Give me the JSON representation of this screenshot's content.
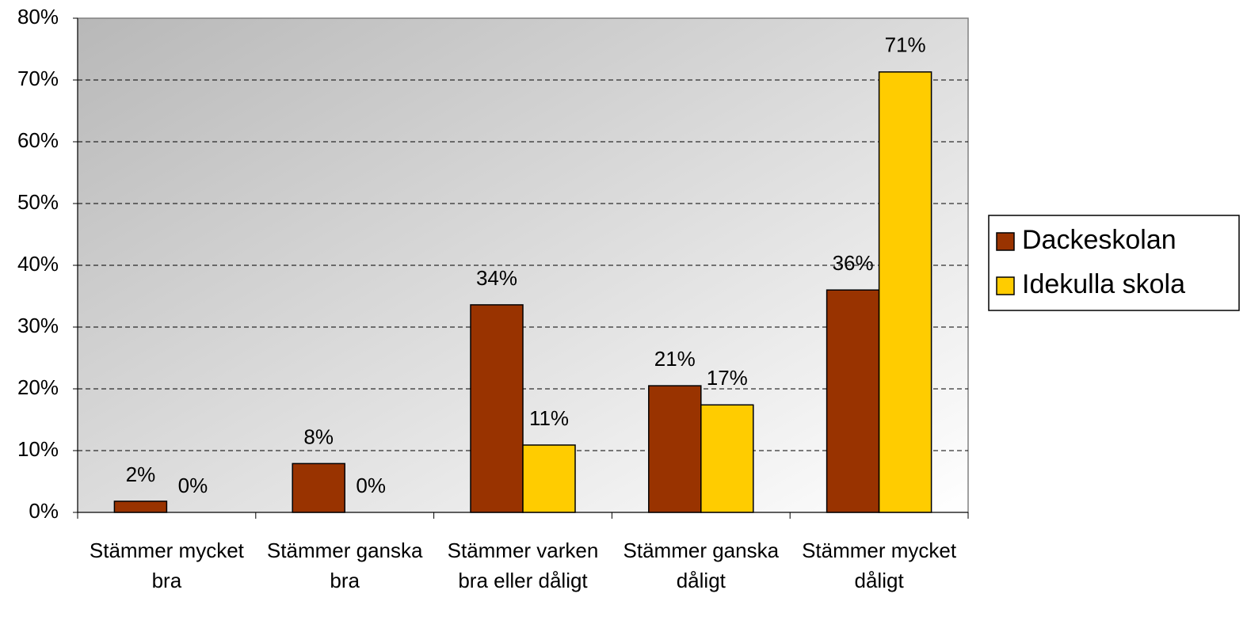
{
  "chart_data": {
    "type": "bar",
    "categories": [
      "Stämmer mycket bra",
      "Stämmer ganska bra",
      "Stämmer varken bra eller dåligt",
      "Stämmer ganska dåligt",
      "Stämmer mycket dåligt"
    ],
    "series": [
      {
        "name": "Dackeskolan",
        "color": "#993300",
        "values": [
          1.8,
          7.9,
          33.6,
          20.5,
          36.0
        ],
        "value_labels": [
          "2%",
          "8%",
          "34%",
          "21%",
          "36%"
        ]
      },
      {
        "name": "Idekulla skola",
        "color": "#ffcc00",
        "values": [
          0,
          0,
          10.9,
          17.4,
          71.3
        ],
        "value_labels": [
          "0%",
          "0%",
          "11%",
          "17%",
          "71%"
        ]
      }
    ],
    "ylim": [
      0,
      80
    ],
    "yticks": [
      {
        "value": 0,
        "label": "0%"
      },
      {
        "value": 10,
        "label": "10%"
      },
      {
        "value": 20,
        "label": "20%"
      },
      {
        "value": 30,
        "label": "30%"
      },
      {
        "value": 40,
        "label": "40%"
      },
      {
        "value": 50,
        "label": "50%"
      },
      {
        "value": 60,
        "label": "60%"
      },
      {
        "value": 70,
        "label": "70%"
      },
      {
        "value": 80,
        "label": "80%"
      }
    ],
    "grid": true,
    "legend": "right"
  }
}
